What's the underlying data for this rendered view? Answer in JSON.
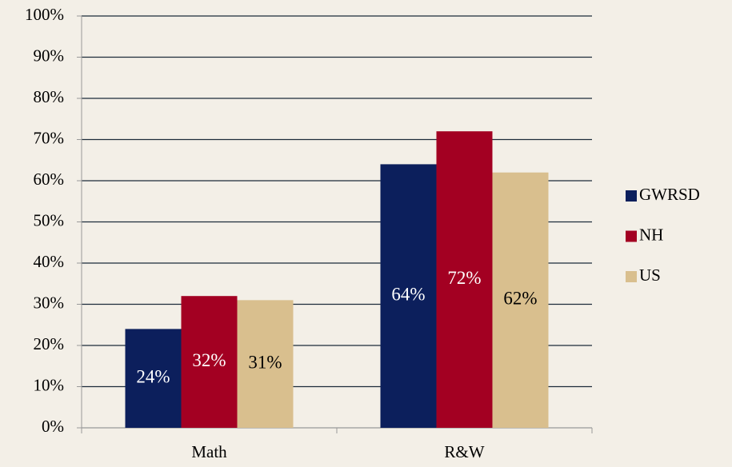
{
  "chart_data": {
    "type": "bar",
    "categories": [
      "Math",
      "R&W"
    ],
    "series": [
      {
        "name": "GWRSD",
        "color": "#0c1f5c",
        "values": [
          24,
          64
        ],
        "value_labels": [
          "24%",
          "64%"
        ]
      },
      {
        "name": "NH",
        "color": "#a30022",
        "values": [
          32,
          72
        ],
        "value_labels": [
          "32%",
          "72%"
        ]
      },
      {
        "name": "US",
        "color": "#d9bf8e",
        "values": [
          31,
          62
        ],
        "value_labels": [
          "31%",
          "62%"
        ]
      }
    ],
    "ylim": [
      0,
      100
    ],
    "yticks": [
      {
        "value": 0,
        "label": "0%"
      },
      {
        "value": 10,
        "label": "10%"
      },
      {
        "value": 20,
        "label": "20%"
      },
      {
        "value": 30,
        "label": "30%"
      },
      {
        "value": 40,
        "label": "40%"
      },
      {
        "value": 50,
        "label": "50%"
      },
      {
        "value": 60,
        "label": "60%"
      },
      {
        "value": 70,
        "label": "70%"
      },
      {
        "value": 80,
        "label": "80%"
      },
      {
        "value": 90,
        "label": "90%"
      },
      {
        "value": 100,
        "label": "100%"
      }
    ],
    "grid": true,
    "legend": "right"
  }
}
